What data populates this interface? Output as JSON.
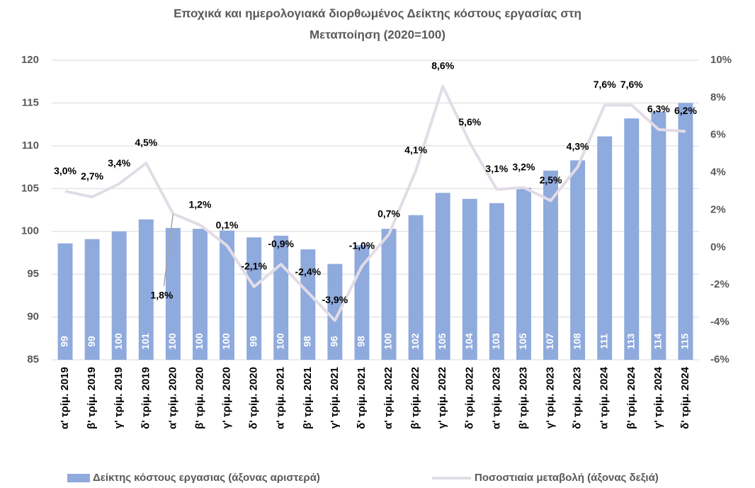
{
  "chart_data": {
    "type": "bar-line",
    "title": [
      "Εποχικά και ημερολογιακά διορθωμένος Δείκτης κόστους εργασίας στη",
      "Μεταποίηση (2020=100)"
    ],
    "categories": [
      "α' τρίμ. 2019",
      "β' τρίμ. 2019",
      "γ' τρίμ. 2019",
      "δ' τρίμ. 2019",
      "α' τρίμ. 2020",
      "β' τρίμ. 2020",
      "γ' τρίμ. 2020",
      "δ' τρίμ. 2020",
      "α' τρίμ. 2021",
      "β' τρίμ. 2021",
      "γ' τρίμ. 2021",
      "δ' τρίμ. 2021",
      "α' τρίμ. 2022",
      "β' τρίμ. 2022",
      "γ' τρίμ. 2022",
      "δ' τρίμ. 2022",
      "α' τρίμ. 2023",
      "β' τρίμ. 2023",
      "γ' τρίμ. 2023",
      "δ' τρίμ. 2023",
      "α' τρίμ. 2024",
      "β' τρίμ. 2024",
      "γ' τρίμ. 2024",
      "δ' τρίμ. 2024"
    ],
    "series": [
      {
        "name": "Δείκτης κόστους εργασιας (άξονας αριστερά)",
        "type": "bar",
        "color": "#8faadc",
        "values": [
          98.6,
          99.1,
          100.0,
          101.4,
          100.4,
          100.3,
          100.1,
          99.3,
          99.5,
          97.9,
          96.2,
          98.4,
          100.3,
          101.9,
          104.5,
          103.8,
          103.3,
          105.1,
          107.1,
          108.3,
          111.1,
          113.2,
          114.0,
          115.0
        ],
        "value_labels": [
          "99",
          "99",
          "100",
          "101",
          "100",
          "100",
          "100",
          "99",
          "100",
          "98",
          "96",
          "98",
          "100",
          "102",
          "105",
          "104",
          "103",
          "105",
          "107",
          "108",
          "111",
          "113",
          "114",
          "115"
        ]
      },
      {
        "name": "Ποσοστιαία μεταβολή (άξονας δεξιά)",
        "type": "line",
        "axis": "y2",
        "color": "#e2dce6",
        "values": [
          3.0,
          2.7,
          3.4,
          4.5,
          1.8,
          1.2,
          0.1,
          -2.1,
          -0.9,
          -2.4,
          -3.9,
          -1.0,
          0.7,
          4.1,
          8.6,
          5.6,
          3.1,
          3.2,
          2.5,
          4.3,
          7.6,
          7.6,
          6.3,
          6.2
        ],
        "value_labels": [
          "3,0%",
          "2,7%",
          "3,4%",
          "4,5%",
          "1,8%",
          "1,2%",
          "0,1%",
          "-2,1%",
          "-0,9%",
          "-2,4%",
          "-3,9%",
          "-1,0%",
          "0,7%",
          "4,1%",
          "8,6%",
          "5,6%",
          "3,1%",
          "3,2%",
          "2,5%",
          "4,3%",
          "7,6%",
          "7,6%",
          "6,3%",
          "6,2%"
        ]
      }
    ],
    "ylim": [
      85,
      120
    ],
    "yticks": [
      85,
      90,
      95,
      100,
      105,
      110,
      115,
      120
    ],
    "y2lim": [
      -6,
      10
    ],
    "y2ticks": [
      {
        "value": -6,
        "label": "-6%"
      },
      {
        "value": -4,
        "label": "-4%"
      },
      {
        "value": -2,
        "label": "-2%"
      },
      {
        "value": 0,
        "label": "0%"
      },
      {
        "value": 2,
        "label": "2%"
      },
      {
        "value": 4,
        "label": "4%"
      },
      {
        "value": 6,
        "label": "6%"
      },
      {
        "value": 8,
        "label": "8%"
      },
      {
        "value": 10,
        "label": "10%"
      }
    ],
    "grid": true,
    "legend": "bottom"
  }
}
